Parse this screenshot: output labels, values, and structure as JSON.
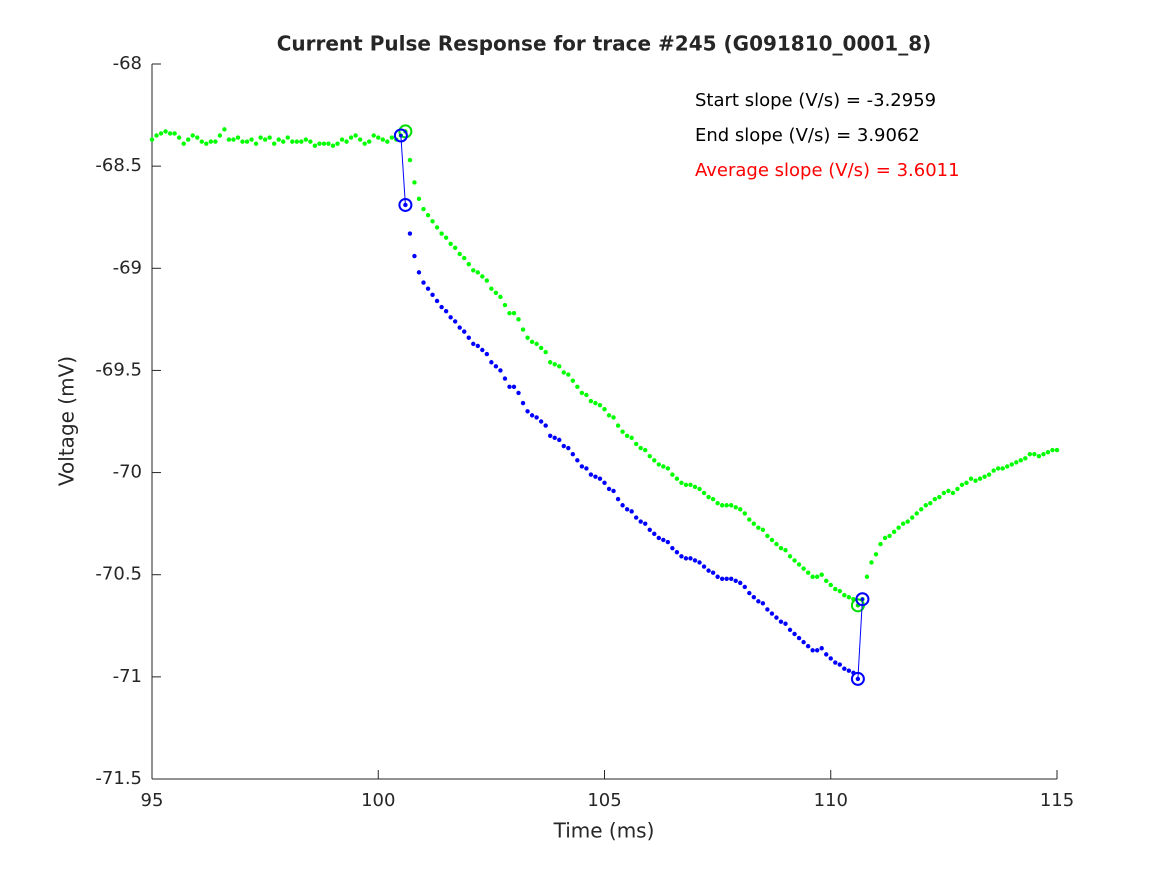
{
  "chart_data": {
    "type": "scatter",
    "title": "Current Pulse Response for trace #245 (G091810_0001_8)",
    "title_color": "#ff0000",
    "xlabel": "Time (ms)",
    "ylabel": "Voltage (mV)",
    "xlim": [
      95,
      115
    ],
    "ylim": [
      -71.5,
      -68
    ],
    "xticks": [
      95,
      100,
      105,
      110,
      115
    ],
    "yticks": [
      -71.5,
      -71,
      -70.5,
      -70,
      -69.5,
      -69,
      -68.5,
      -68
    ],
    "annotations": [
      {
        "text": "Start slope (V/s) = -3.2959",
        "color": "#000000"
      },
      {
        "text": "End slope (V/s) = 3.9062",
        "color": "#000000"
      },
      {
        "text": "Average slope (V/s) = 3.6011",
        "color": "#ff0000"
      }
    ],
    "series": [
      {
        "color": "#00ff00",
        "x": [
          95,
          95.1,
          95.2,
          95.3,
          95.4,
          95.5,
          95.6,
          95.7,
          95.8,
          95.9,
          96,
          96.1,
          96.2,
          96.3,
          96.4,
          96.5,
          96.6,
          96.7,
          96.8,
          96.9,
          97,
          97.1,
          97.2,
          97.3,
          97.4,
          97.5,
          97.6,
          97.7,
          97.8,
          97.9,
          98,
          98.1,
          98.2,
          98.3,
          98.4,
          98.5,
          98.6,
          98.7,
          98.8,
          98.9,
          99,
          99.1,
          99.2,
          99.3,
          99.4,
          99.5,
          99.6,
          99.7,
          99.8,
          99.9,
          100,
          100.1,
          100.2,
          100.3,
          100.4,
          100.5,
          100.6,
          100.7,
          100.8,
          100.9,
          101,
          101.1,
          101.2,
          101.3,
          101.4,
          101.5,
          101.6,
          101.7,
          101.8,
          101.9,
          102,
          102.1,
          102.2,
          102.3,
          102.4,
          102.5,
          102.6,
          102.7,
          102.8,
          102.9,
          103,
          103.1,
          103.2,
          103.3,
          103.4,
          103.5,
          103.6,
          103.7,
          103.8,
          103.9,
          104,
          104.1,
          104.2,
          104.3,
          104.4,
          104.5,
          104.6,
          104.7,
          104.8,
          104.9,
          105,
          105.1,
          105.2,
          105.3,
          105.4,
          105.5,
          105.6,
          105.7,
          105.8,
          105.9,
          106,
          106.1,
          106.2,
          106.3,
          106.4,
          106.5,
          106.6,
          106.7,
          106.8,
          106.9,
          107,
          107.1,
          107.2,
          107.3,
          107.4,
          107.5,
          107.6,
          107.7,
          107.8,
          107.9,
          108,
          108.1,
          108.2,
          108.3,
          108.4,
          108.5,
          108.6,
          108.7,
          108.8,
          108.9,
          109,
          109.1,
          109.2,
          109.3,
          109.4,
          109.5,
          109.6,
          109.7,
          109.8,
          109.9,
          110,
          110.1,
          110.2,
          110.3,
          110.4,
          110.5,
          110.6,
          110.7,
          110.8,
          110.9,
          111,
          111.1,
          111.2,
          111.3,
          111.4,
          111.5,
          111.6,
          111.7,
          111.8,
          111.9,
          112,
          112.1,
          112.2,
          112.3,
          112.4,
          112.5,
          112.6,
          112.7,
          112.8,
          112.9,
          113,
          113.1,
          113.2,
          113.3,
          113.4,
          113.5,
          113.6,
          113.7,
          113.8,
          113.9,
          114,
          114.1,
          114.2,
          114.3,
          114.4,
          114.5,
          114.6,
          114.7,
          114.8,
          114.9,
          115
        ],
        "values": [
          -68.37,
          -68.35,
          -68.34,
          -68.33,
          -68.34,
          -68.34,
          -68.36,
          -68.39,
          -68.37,
          -68.35,
          -68.36,
          -68.38,
          -68.39,
          -68.38,
          -68.38,
          -68.35,
          -68.32,
          -68.37,
          -68.37,
          -68.36,
          -68.38,
          -68.38,
          -68.37,
          -68.39,
          -68.36,
          -68.37,
          -68.36,
          -68.39,
          -68.37,
          -68.38,
          -68.36,
          -68.38,
          -68.38,
          -68.38,
          -68.37,
          -68.38,
          -68.4,
          -68.39,
          -68.39,
          -68.39,
          -68.4,
          -68.39,
          -68.37,
          -68.38,
          -68.36,
          -68.35,
          -68.37,
          -68.39,
          -68.38,
          -68.35,
          -68.36,
          -68.37,
          -68.38,
          -68.36,
          -68.37,
          -68.35,
          -68.33,
          -68.47,
          -68.58,
          -68.66,
          -68.71,
          -68.74,
          -68.77,
          -68.8,
          -68.83,
          -68.85,
          -68.88,
          -68.9,
          -68.93,
          -68.95,
          -68.98,
          -69.01,
          -69.02,
          -69.04,
          -69.06,
          -69.1,
          -69.12,
          -69.14,
          -69.18,
          -69.22,
          -69.22,
          -69.25,
          -69.3,
          -69.34,
          -69.36,
          -69.37,
          -69.39,
          -69.41,
          -69.46,
          -69.47,
          -69.48,
          -69.51,
          -69.52,
          -69.55,
          -69.58,
          -69.61,
          -69.62,
          -69.65,
          -69.66,
          -69.67,
          -69.69,
          -69.72,
          -69.73,
          -69.77,
          -69.8,
          -69.82,
          -69.83,
          -69.86,
          -69.88,
          -69.89,
          -69.92,
          -69.94,
          -69.96,
          -69.97,
          -69.98,
          -70.01,
          -70.03,
          -70.05,
          -70.06,
          -70.06,
          -70.07,
          -70.08,
          -70.1,
          -70.12,
          -70.13,
          -70.15,
          -70.16,
          -70.16,
          -70.16,
          -70.17,
          -70.18,
          -70.2,
          -70.23,
          -70.25,
          -70.27,
          -70.28,
          -70.31,
          -70.33,
          -70.35,
          -70.37,
          -70.38,
          -70.41,
          -70.43,
          -70.45,
          -70.47,
          -70.49,
          -70.51,
          -70.51,
          -70.5,
          -70.53,
          -70.55,
          -70.57,
          -70.58,
          -70.6,
          -70.61,
          -70.62,
          -70.65,
          -70.62,
          -70.51,
          -70.44,
          -70.4,
          -70.35,
          -70.32,
          -70.31,
          -70.29,
          -70.27,
          -70.25,
          -70.24,
          -70.22,
          -70.2,
          -70.18,
          -70.16,
          -70.15,
          -70.13,
          -70.12,
          -70.1,
          -70.09,
          -70.1,
          -70.08,
          -70.06,
          -70.05,
          -70.03,
          -70.04,
          -70.03,
          -70.02,
          -70.01,
          -69.99,
          -69.98,
          -69.98,
          -69.97,
          -69.96,
          -69.95,
          -69.94,
          -69.93,
          -69.91,
          -69.91,
          -69.92,
          -69.91,
          -69.9,
          -69.89,
          -69.89
        ]
      },
      {
        "color": "#0000ff",
        "x": [
          100.6,
          100.7,
          100.8,
          100.9,
          101,
          101.1,
          101.2,
          101.3,
          101.4,
          101.5,
          101.6,
          101.7,
          101.8,
          101.9,
          102,
          102.1,
          102.2,
          102.3,
          102.4,
          102.5,
          102.6,
          102.7,
          102.8,
          102.9,
          103,
          103.1,
          103.2,
          103.3,
          103.4,
          103.5,
          103.6,
          103.7,
          103.8,
          103.9,
          104,
          104.1,
          104.2,
          104.3,
          104.4,
          104.5,
          104.6,
          104.7,
          104.8,
          104.9,
          105,
          105.1,
          105.2,
          105.3,
          105.4,
          105.5,
          105.6,
          105.7,
          105.8,
          105.9,
          106,
          106.1,
          106.2,
          106.3,
          106.4,
          106.5,
          106.6,
          106.7,
          106.8,
          106.9,
          107,
          107.1,
          107.2,
          107.3,
          107.4,
          107.5,
          107.6,
          107.7,
          107.8,
          107.9,
          108,
          108.1,
          108.2,
          108.3,
          108.4,
          108.5,
          108.6,
          108.7,
          108.8,
          108.9,
          109,
          109.1,
          109.2,
          109.3,
          109.4,
          109.5,
          109.6,
          109.7,
          109.8,
          109.9,
          110,
          110.1,
          110.2,
          110.3,
          110.4,
          110.5,
          110.6
        ],
        "values": [
          -68.69,
          -68.83,
          -68.94,
          -69.02,
          -69.07,
          -69.1,
          -69.13,
          -69.16,
          -69.19,
          -69.21,
          -69.24,
          -69.26,
          -69.29,
          -69.31,
          -69.34,
          -69.37,
          -69.38,
          -69.4,
          -69.42,
          -69.46,
          -69.48,
          -69.5,
          -69.54,
          -69.58,
          -69.58,
          -69.61,
          -69.66,
          -69.7,
          -69.72,
          -69.73,
          -69.75,
          -69.77,
          -69.82,
          -69.83,
          -69.84,
          -69.87,
          -69.88,
          -69.91,
          -69.94,
          -69.97,
          -69.98,
          -70.01,
          -70.02,
          -70.03,
          -70.05,
          -70.08,
          -70.09,
          -70.13,
          -70.16,
          -70.18,
          -70.19,
          -70.22,
          -70.24,
          -70.25,
          -70.28,
          -70.3,
          -70.32,
          -70.33,
          -70.34,
          -70.37,
          -70.39,
          -70.41,
          -70.42,
          -70.42,
          -70.43,
          -70.44,
          -70.46,
          -70.48,
          -70.49,
          -70.51,
          -70.52,
          -70.52,
          -70.52,
          -70.53,
          -70.54,
          -70.56,
          -70.59,
          -70.61,
          -70.63,
          -70.64,
          -70.67,
          -70.69,
          -70.71,
          -70.73,
          -70.74,
          -70.77,
          -70.79,
          -70.81,
          -70.83,
          -70.85,
          -70.87,
          -70.87,
          -70.86,
          -70.89,
          -70.91,
          -70.93,
          -70.94,
          -70.96,
          -70.97,
          -70.98,
          -71.01
        ]
      }
    ],
    "markers": [
      {
        "color": "#00dd00",
        "x": [
          100.6,
          110.6
        ],
        "values": [
          -68.33,
          -70.65
        ],
        "connect_pairs": false
      },
      {
        "color": "#0000ff",
        "x": [
          100.5,
          100.6,
          110.6,
          110.7
        ],
        "values": [
          -68.35,
          -68.69,
          -71.01,
          -70.62
        ],
        "connect_pairs": true
      }
    ]
  }
}
